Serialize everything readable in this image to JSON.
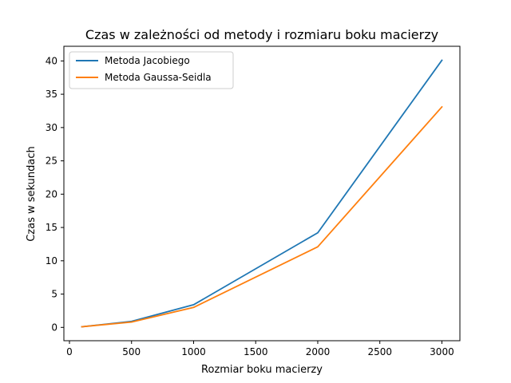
{
  "chart_data": {
    "type": "line",
    "title": "Czas w zależności od metody i rozmiaru boku macierzy",
    "xlabel": "Rozmiar boku macierzy",
    "ylabel": "Czas w sekundach",
    "xlim": [
      -45,
      3145
    ],
    "ylim": [
      -2.0,
      42.2
    ],
    "xticks": [
      0,
      500,
      1000,
      1500,
      2000,
      2500,
      3000
    ],
    "yticks": [
      0,
      5,
      10,
      15,
      20,
      25,
      30,
      35,
      40
    ],
    "grid": false,
    "legend_position": "top-left",
    "x": [
      100,
      500,
      1000,
      2000,
      3000
    ],
    "series": [
      {
        "name": "Metoda Jacobiego",
        "color": "#1f77b4",
        "values": [
          0.1,
          0.9,
          3.4,
          14.2,
          40.1
        ]
      },
      {
        "name": "Metoda Gaussa-Seidla",
        "color": "#ff7f0e",
        "values": [
          0.1,
          0.8,
          3.0,
          12.1,
          33.1
        ]
      }
    ]
  }
}
